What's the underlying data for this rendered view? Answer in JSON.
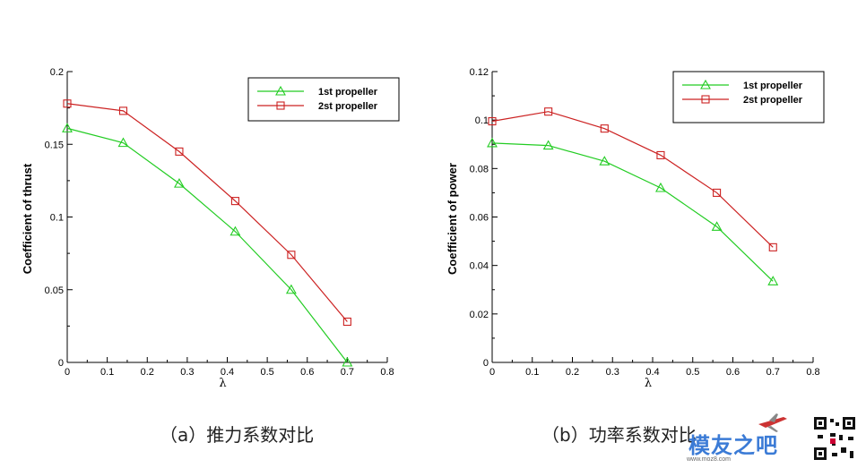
{
  "chart_data": [
    {
      "type": "line",
      "xlabel": "λ",
      "ylabel": "Coefficient of thrust",
      "xlim": [
        0,
        0.8
      ],
      "ylim": [
        0,
        0.2
      ],
      "xticks": [
        0,
        0.1,
        0.2,
        0.3,
        0.4,
        0.5,
        0.6,
        0.7,
        0.8
      ],
      "xtick_labels": [
        "0",
        "0.1",
        "0.2",
        "0.3",
        "0.4",
        "0.5",
        "0.6",
        "0.7",
        "0.8"
      ],
      "yticks": [
        0,
        0.05,
        0.1,
        0.15,
        0.2
      ],
      "ytick_labels": [
        "0",
        "0.05",
        "0.1",
        "0.15",
        "0.2"
      ],
      "legend_position": "top-right",
      "grid": false,
      "x": [
        0,
        0.14,
        0.28,
        0.42,
        0.56,
        0.7
      ],
      "series": [
        {
          "name": "1st propeller",
          "values": [
            0.161,
            0.151,
            0.123,
            0.09,
            0.05,
            0.0
          ],
          "color": "#22cc22",
          "marker": "triangle"
        },
        {
          "name": "2st propeller",
          "values": [
            0.178,
            0.173,
            0.145,
            0.111,
            0.074,
            0.028
          ],
          "color": "#cc2222",
          "marker": "square"
        }
      ]
    },
    {
      "type": "line",
      "xlabel": "λ",
      "ylabel": "Coefficient of power",
      "xlim": [
        0,
        0.8
      ],
      "ylim": [
        0,
        0.12
      ],
      "xticks": [
        0,
        0.1,
        0.2,
        0.3,
        0.4,
        0.5,
        0.6,
        0.7,
        0.8
      ],
      "xtick_labels": [
        "0",
        "0.1",
        "0.2",
        "0.3",
        "0.4",
        "0.5",
        "0.6",
        "0.7",
        "0.8"
      ],
      "yticks": [
        0,
        0.02,
        0.04,
        0.06,
        0.08,
        0.1,
        0.12
      ],
      "ytick_labels": [
        "0",
        "0.02",
        "0.04",
        "0.06",
        "0.08",
        "0.1",
        "0.12"
      ],
      "legend_position": "top-right",
      "grid": false,
      "x": [
        0,
        0.14,
        0.28,
        0.42,
        0.56,
        0.7
      ],
      "series": [
        {
          "name": "1st propeller",
          "values": [
            0.0905,
            0.0895,
            0.083,
            0.072,
            0.056,
            0.0335
          ],
          "color": "#22cc22",
          "marker": "triangle"
        },
        {
          "name": "2st propeller",
          "values": [
            0.0995,
            0.1035,
            0.0965,
            0.0855,
            0.07,
            0.0475
          ],
          "color": "#cc2222",
          "marker": "square"
        }
      ]
    }
  ],
  "captions": {
    "a": "（a）推力系数对比",
    "b": "（b）功率系数对比"
  },
  "watermark": {
    "text": "模友之吧",
    "url": "www.moz8.com"
  }
}
